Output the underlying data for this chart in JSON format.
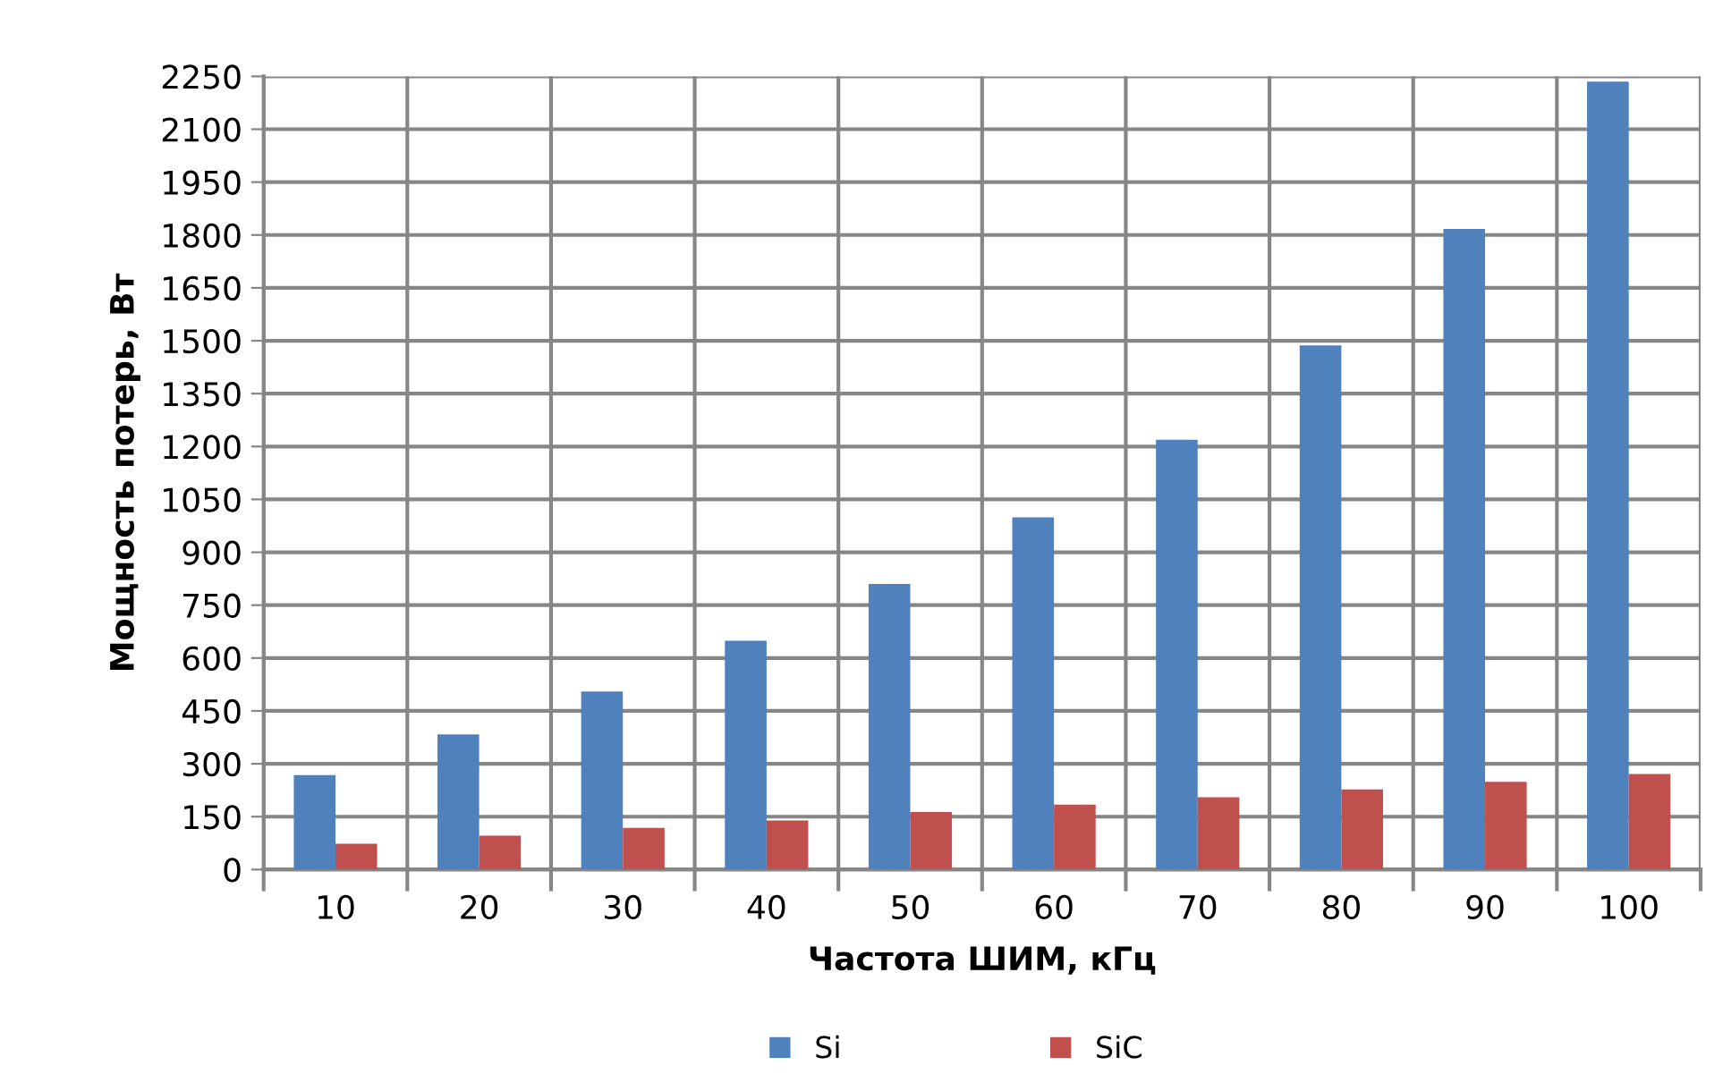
{
  "chart_data": {
    "type": "bar",
    "xlabel": "Частота ШИМ, кГц",
    "ylabel": "Мощность потерь, Вт",
    "categories": [
      "10",
      "20",
      "30",
      "40",
      "50",
      "60",
      "70",
      "80",
      "90",
      "100"
    ],
    "series": [
      {
        "name": "Si",
        "color": "#4f81bd",
        "values": [
          268,
          383,
          505,
          649,
          810,
          999,
          1219,
          1487,
          1817,
          2235
        ]
      },
      {
        "name": "SiC",
        "color": "#c0504d",
        "values": [
          73,
          96,
          118,
          139,
          163,
          184,
          205,
          227,
          249,
          271
        ]
      }
    ],
    "ylim": [
      0,
      2250
    ],
    "yticks": [
      0,
      150,
      300,
      450,
      600,
      750,
      900,
      1050,
      1200,
      1350,
      1500,
      1650,
      1800,
      1950,
      2100,
      2250
    ],
    "grid": true,
    "legend": "bottom"
  }
}
